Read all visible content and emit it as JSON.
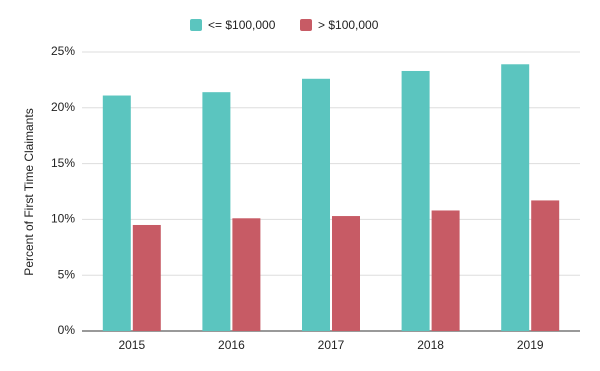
{
  "chart_data": {
    "type": "bar",
    "y_axis_label": "Percent of First Time Claimants",
    "categories": [
      "2015",
      "2016",
      "2017",
      "2018",
      "2019"
    ],
    "series": [
      {
        "name": "<= $100,000",
        "color": "#5bc5bf",
        "values": [
          21.1,
          21.4,
          22.6,
          23.3,
          23.9
        ]
      },
      {
        "name": "> $100,000",
        "color": "#c75b65",
        "values": [
          9.5,
          10.1,
          10.3,
          10.8,
          11.7
        ]
      }
    ],
    "ylim": [
      0,
      25
    ],
    "yticks": [
      {
        "value": 0,
        "label": "0%"
      },
      {
        "value": 5,
        "label": "5%"
      },
      {
        "value": 10,
        "label": "10%"
      },
      {
        "value": 15,
        "label": "15%"
      },
      {
        "value": 20,
        "label": "20%"
      },
      {
        "value": 25,
        "label": "25%"
      }
    ],
    "grid": true,
    "legend": "top"
  }
}
